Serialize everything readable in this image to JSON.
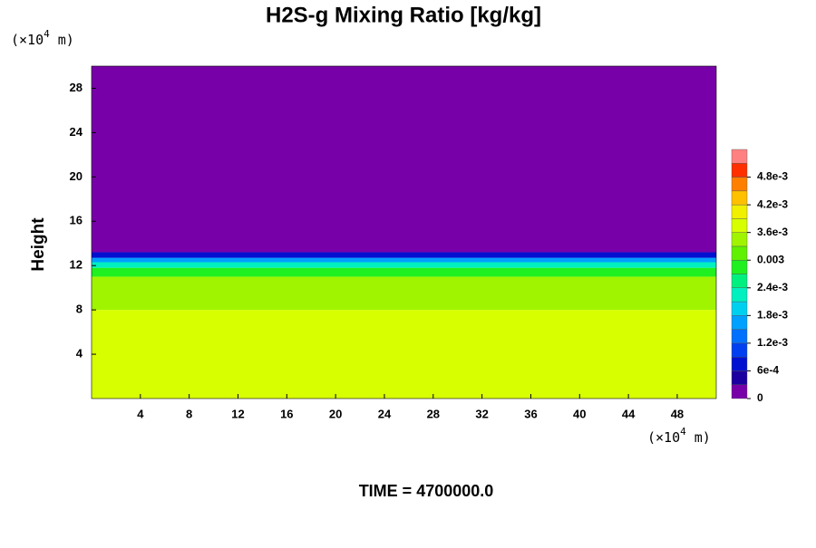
{
  "chart_data": {
    "type": "contour",
    "title": "H2S-g Mixing Ratio [kg/kg]",
    "y_label": "Height",
    "x_unit": {
      "base": "(×10",
      "exp": "4",
      "rest": " m)"
    },
    "y_unit": {
      "base": "(×10",
      "exp": "4",
      "rest": " m)"
    },
    "footer": "TIME = 4700000.0",
    "xlim": [
      0,
      51.2
    ],
    "ylim": [
      0,
      30
    ],
    "xticks": [
      4,
      8,
      12,
      16,
      20,
      24,
      28,
      32,
      36,
      40,
      44,
      48
    ],
    "yticks": [
      4,
      8,
      12,
      16,
      20,
      24,
      28
    ],
    "y_edges": [
      0,
      8,
      11,
      11.8,
      12.3,
      12.7,
      13.2,
      30
    ],
    "values": [
      0.00375,
      0.00345,
      0.00285,
      0.0023,
      0.0017,
      0.0006,
      0
    ],
    "levels": [
      0,
      0.0003,
      0.0006,
      0.0009,
      0.0012,
      0.0015,
      0.0018,
      0.0021,
      0.0024,
      0.0027,
      0.003,
      0.0033,
      0.0036,
      0.0039,
      0.0042,
      0.0045,
      0.0048,
      0.0051,
      0.0054
    ],
    "colors": [
      "#7800a8",
      "#1c00a0",
      "#0010d0",
      "#0040f0",
      "#0070ff",
      "#00a0ff",
      "#00d0f0",
      "#00f0c0",
      "#00f080",
      "#20f020",
      "#60f000",
      "#a0f400",
      "#d8ff00",
      "#f0f000",
      "#ffc000",
      "#ff8000",
      "#ff3000",
      "#ff8080"
    ],
    "cbar_ticks": [
      0,
      {
        "value": 0.0006,
        "label": "6e-4"
      },
      {
        "value": 0.0012,
        "label": "1.2e-3"
      },
      {
        "value": 0.0018,
        "label": "1.8e-3"
      },
      {
        "value": 0.0024,
        "label": "2.4e-3"
      },
      0.003,
      {
        "value": 0.0036,
        "label": "3.6e-3"
      },
      {
        "value": 0.0042,
        "label": "4.2e-3"
      },
      {
        "value": 0.0048,
        "label": "4.8e-3"
      }
    ]
  }
}
